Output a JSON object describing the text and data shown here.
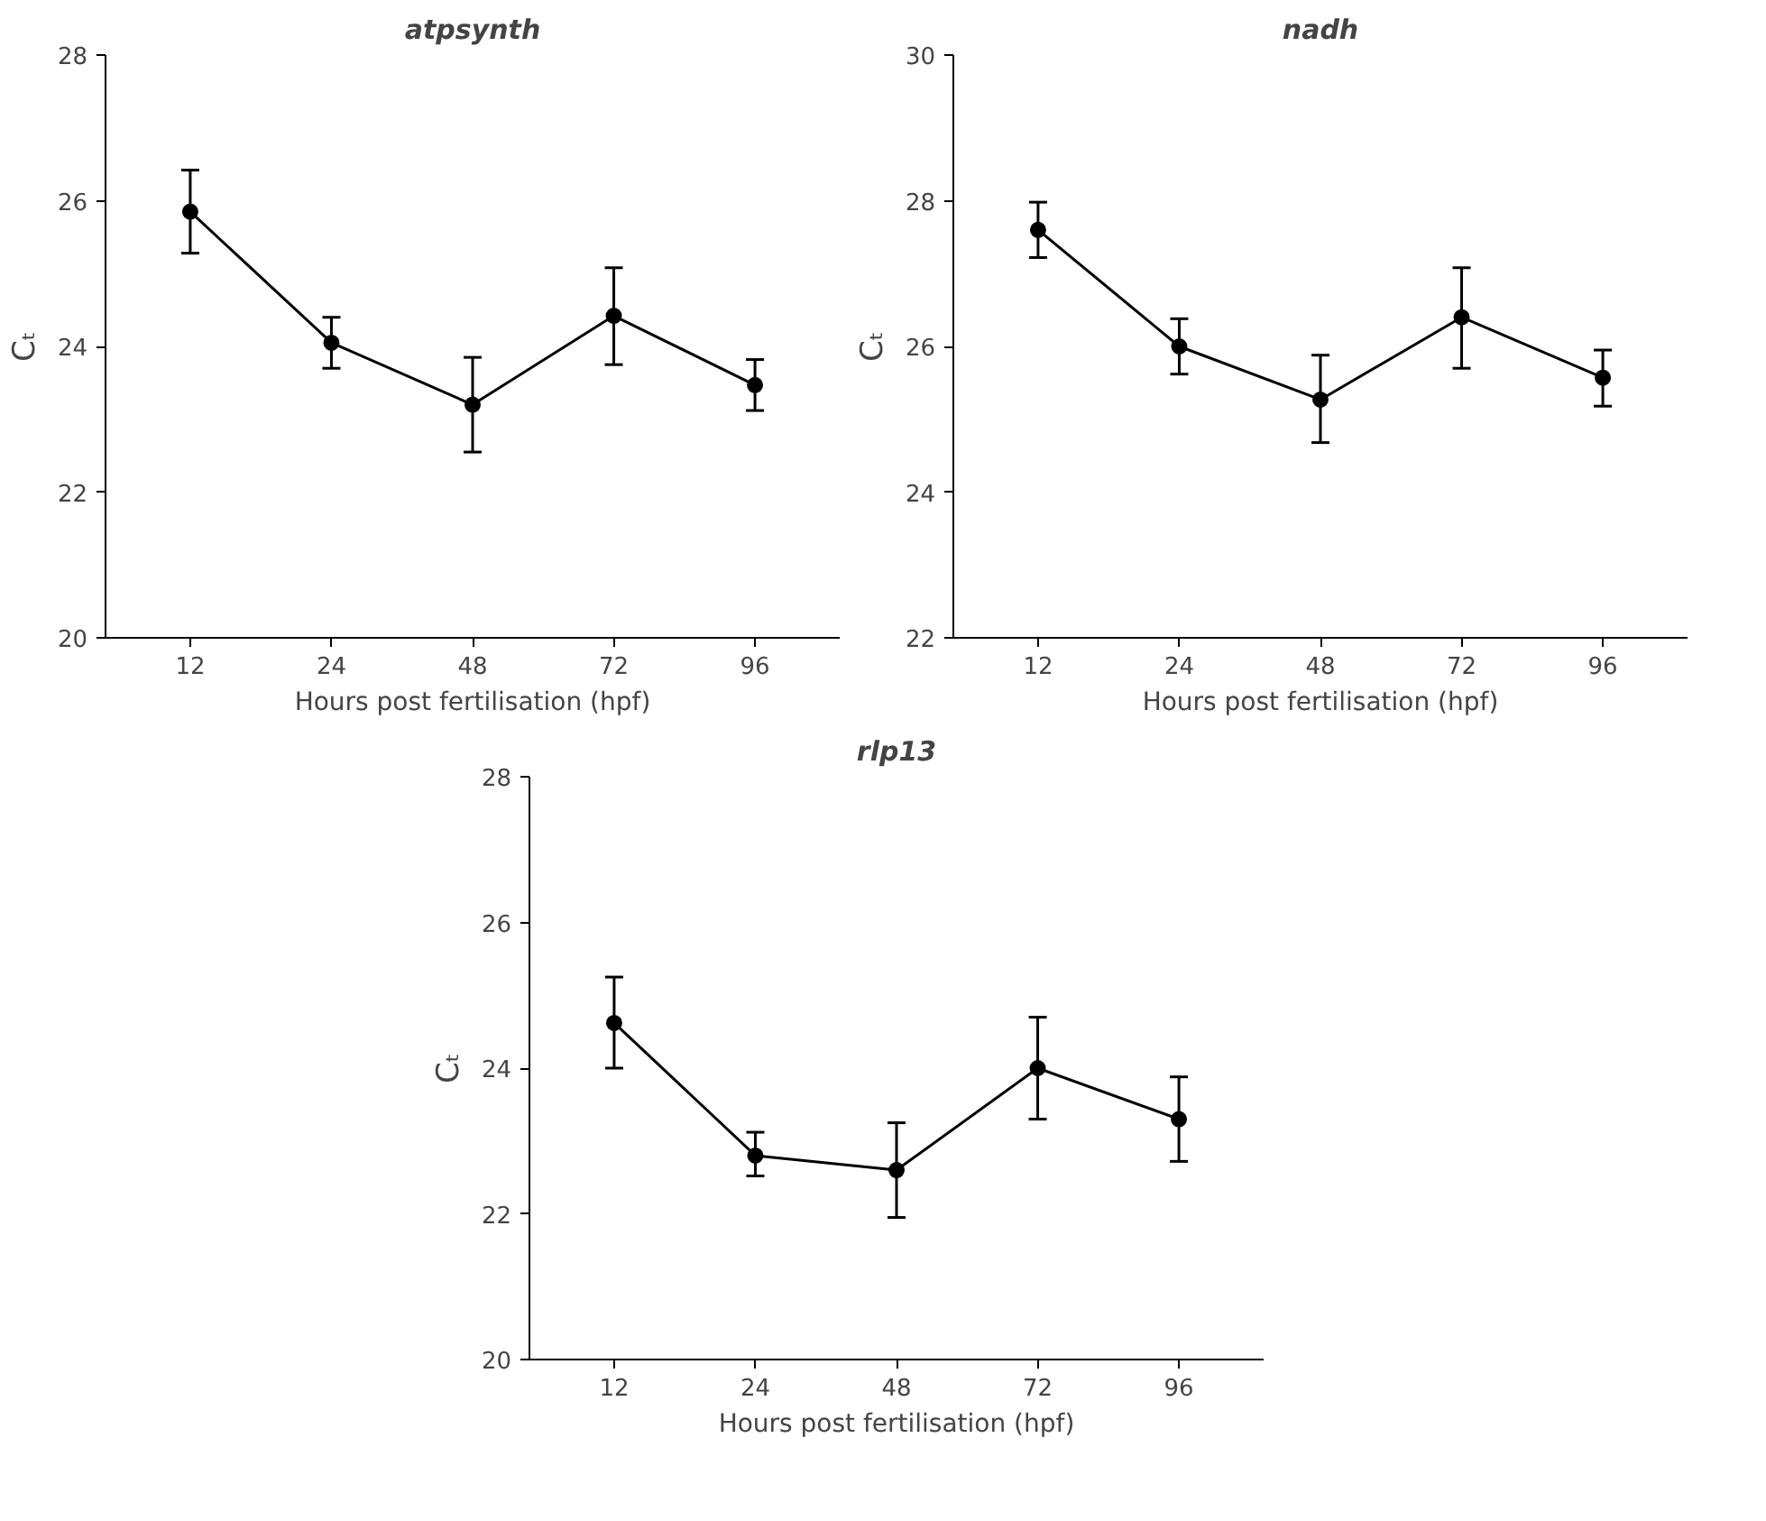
{
  "chart_data": [
    {
      "type": "line",
      "title": "atpsynth",
      "xlabel": "Hours post fertilisation (hpf)",
      "ylabel": "Cₜ",
      "categories": [
        "12",
        "24",
        "48",
        "72",
        "96"
      ],
      "marker": "circle",
      "line_style": "solid",
      "grid": false,
      "ylim": [
        20,
        28
      ],
      "yticks": [
        20,
        22,
        24,
        26,
        28
      ],
      "series": [
        {
          "color": "#000000",
          "values": [
            25.85,
            24.05,
            23.2,
            24.42,
            23.47
          ],
          "errors": [
            [
              25.28,
              26.42
            ],
            [
              23.7,
              24.4
            ],
            [
              22.55,
              23.85
            ],
            [
              23.75,
              25.08
            ],
            [
              23.12,
              23.82
            ]
          ]
        }
      ]
    },
    {
      "type": "line",
      "title": "nadh",
      "xlabel": "Hours post fertilisation (hpf)",
      "ylabel": "Cₜ",
      "categories": [
        "12",
        "24",
        "48",
        "72",
        "96"
      ],
      "marker": "circle",
      "line_style": "solid",
      "grid": false,
      "ylim": [
        22,
        30
      ],
      "yticks": [
        22,
        24,
        26,
        28,
        30
      ],
      "series": [
        {
          "color": "#000000",
          "values": [
            27.6,
            26.0,
            25.27,
            26.4,
            25.57
          ],
          "errors": [
            [
              27.22,
              27.98
            ],
            [
              25.62,
              26.38
            ],
            [
              24.68,
              25.88
            ],
            [
              25.7,
              27.08
            ],
            [
              25.18,
              25.95
            ]
          ]
        }
      ]
    },
    {
      "type": "line",
      "title": "rlp13",
      "xlabel": "Hours post fertilisation (hpf)",
      "ylabel": "Cₜ",
      "categories": [
        "12",
        "24",
        "48",
        "72",
        "96"
      ],
      "marker": "circle",
      "line_style": "solid",
      "grid": false,
      "ylim": [
        20,
        28
      ],
      "yticks": [
        20,
        22,
        24,
        26,
        28
      ],
      "series": [
        {
          "color": "#000000",
          "values": [
            24.62,
            22.8,
            22.6,
            24.0,
            23.3
          ],
          "errors": [
            [
              24.0,
              25.25
            ],
            [
              22.52,
              23.12
            ],
            [
              21.95,
              23.25
            ],
            [
              23.3,
              24.7
            ],
            [
              22.72,
              23.88
            ]
          ]
        }
      ]
    }
  ]
}
